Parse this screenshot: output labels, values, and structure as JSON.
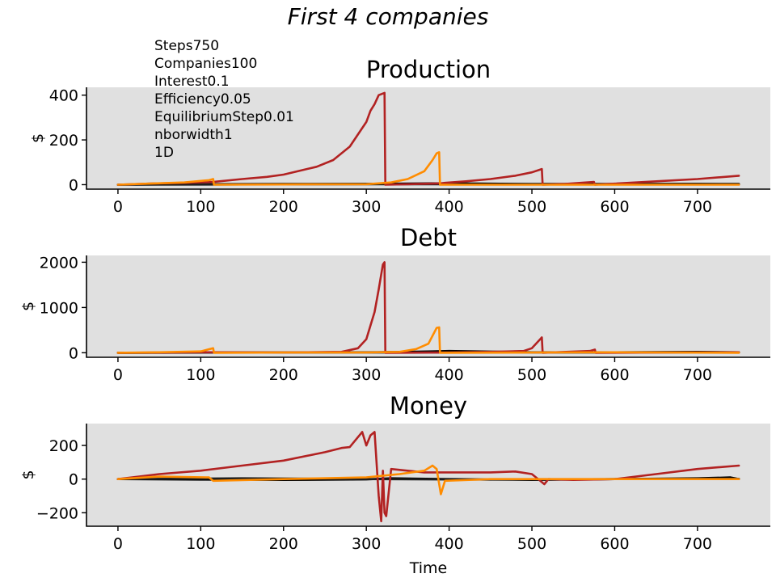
{
  "figure": {
    "suptitle": "First 4 companies",
    "params": [
      "Steps750",
      "Companies100",
      "Interest0.1",
      "Efficiency0.05",
      "EquilibriumStep0.01",
      "nborwidth1",
      "1D"
    ]
  },
  "chart_data": [
    {
      "type": "line",
      "title": "Production",
      "xlabel": "",
      "ylabel": "$",
      "xlim": [
        -38,
        788
      ],
      "ylim": [
        -20,
        435
      ],
      "xticks": [
        0,
        100,
        200,
        300,
        400,
        500,
        600,
        700
      ],
      "yticks": [
        0,
        200,
        400
      ],
      "series": [
        {
          "color": "#000000",
          "points": [
            [
              0,
              0
            ],
            [
              100,
              2
            ],
            [
              200,
              3
            ],
            [
              300,
              4
            ],
            [
              380,
              6
            ],
            [
              400,
              6
            ],
            [
              500,
              3
            ],
            [
              600,
              3
            ],
            [
              700,
              4
            ],
            [
              750,
              3
            ]
          ]
        },
        {
          "color": "#1f1f1f",
          "points": [
            [
              0,
              0
            ],
            [
              150,
              1
            ],
            [
              300,
              2
            ],
            [
              450,
              2
            ],
            [
              600,
              2
            ],
            [
              750,
              1
            ]
          ]
        },
        {
          "color": "#b22222",
          "points": [
            [
              0,
              0
            ],
            [
              40,
              5
            ],
            [
              80,
              8
            ],
            [
              115,
              12
            ],
            [
              150,
              25
            ],
            [
              180,
              35
            ],
            [
              200,
              45
            ],
            [
              240,
              80
            ],
            [
              260,
              110
            ],
            [
              280,
              170
            ],
            [
              300,
              280
            ],
            [
              305,
              330
            ],
            [
              310,
              360
            ],
            [
              315,
              400
            ],
            [
              322,
              410
            ],
            [
              323,
              0
            ],
            [
              350,
              2
            ],
            [
              390,
              6
            ],
            [
              395,
              8
            ],
            [
              420,
              15
            ],
            [
              450,
              25
            ],
            [
              480,
              40
            ],
            [
              500,
              55
            ],
            [
              512,
              70
            ],
            [
              513,
              0
            ],
            [
              540,
              3
            ],
            [
              575,
              12
            ],
            [
              576,
              0
            ],
            [
              650,
              15
            ],
            [
              700,
              25
            ],
            [
              750,
              40
            ]
          ]
        },
        {
          "color": "#ff8c00",
          "points": [
            [
              0,
              0
            ],
            [
              40,
              5
            ],
            [
              80,
              10
            ],
            [
              110,
              20
            ],
            [
              115,
              25
            ],
            [
              116,
              0
            ],
            [
              200,
              1
            ],
            [
              300,
              2
            ],
            [
              330,
              10
            ],
            [
              350,
              25
            ],
            [
              370,
              60
            ],
            [
              380,
              110
            ],
            [
              385,
              140
            ],
            [
              388,
              145
            ],
            [
              389,
              0
            ],
            [
              500,
              0
            ],
            [
              600,
              0
            ],
            [
              750,
              0
            ]
          ]
        }
      ]
    },
    {
      "type": "line",
      "title": "Debt",
      "xlabel": "",
      "ylabel": "$",
      "xlim": [
        -38,
        788
      ],
      "ylim": [
        -100,
        2150
      ],
      "xticks": [
        0,
        100,
        200,
        300,
        400,
        500,
        600,
        700
      ],
      "yticks": [
        0,
        1000,
        2000
      ],
      "series": [
        {
          "color": "#000000",
          "points": [
            [
              0,
              0
            ],
            [
              100,
              5
            ],
            [
              200,
              5
            ],
            [
              300,
              10
            ],
            [
              350,
              20
            ],
            [
              380,
              30
            ],
            [
              400,
              40
            ],
            [
              500,
              10
            ],
            [
              600,
              10
            ],
            [
              700,
              20
            ],
            [
              750,
              10
            ]
          ]
        },
        {
          "color": "#1f1f1f",
          "points": [
            [
              0,
              0
            ],
            [
              200,
              5
            ],
            [
              400,
              5
            ],
            [
              600,
              5
            ],
            [
              750,
              5
            ]
          ]
        },
        {
          "color": "#b22222",
          "points": [
            [
              0,
              0
            ],
            [
              100,
              10
            ],
            [
              200,
              5
            ],
            [
              270,
              20
            ],
            [
              290,
              100
            ],
            [
              300,
              300
            ],
            [
              305,
              600
            ],
            [
              310,
              900
            ],
            [
              315,
              1400
            ],
            [
              320,
              1950
            ],
            [
              322,
              2000
            ],
            [
              323,
              0
            ],
            [
              400,
              5
            ],
            [
              450,
              20
            ],
            [
              490,
              40
            ],
            [
              500,
              100
            ],
            [
              510,
              300
            ],
            [
              512,
              340
            ],
            [
              513,
              0
            ],
            [
              570,
              40
            ],
            [
              576,
              70
            ],
            [
              577,
              0
            ],
            [
              750,
              10
            ]
          ]
        },
        {
          "color": "#ff8c00",
          "points": [
            [
              0,
              0
            ],
            [
              50,
              10
            ],
            [
              100,
              30
            ],
            [
              115,
              100
            ],
            [
              116,
              0
            ],
            [
              200,
              5
            ],
            [
              300,
              5
            ],
            [
              340,
              20
            ],
            [
              360,
              80
            ],
            [
              375,
              200
            ],
            [
              385,
              550
            ],
            [
              388,
              560
            ],
            [
              389,
              0
            ],
            [
              500,
              5
            ],
            [
              600,
              10
            ],
            [
              750,
              0
            ]
          ]
        }
      ]
    },
    {
      "type": "line",
      "title": "Money",
      "xlabel": "Time",
      "ylabel": "$",
      "xlim": [
        -38,
        788
      ],
      "ylim": [
        -280,
        330
      ],
      "xticks": [
        0,
        100,
        200,
        300,
        400,
        500,
        600,
        700
      ],
      "yticks": [
        -200,
        0,
        200
      ],
      "series": [
        {
          "color": "#000000",
          "points": [
            [
              0,
              0
            ],
            [
              100,
              -3
            ],
            [
              200,
              -5
            ],
            [
              300,
              -2
            ],
            [
              330,
              5
            ],
            [
              400,
              0
            ],
            [
              500,
              -5
            ],
            [
              600,
              0
            ],
            [
              700,
              5
            ],
            [
              740,
              10
            ],
            [
              750,
              0
            ]
          ]
        },
        {
          "color": "#1f1f1f",
          "points": [
            [
              0,
              0
            ],
            [
              150,
              5
            ],
            [
              300,
              0
            ],
            [
              450,
              -3
            ],
            [
              600,
              0
            ],
            [
              750,
              2
            ]
          ]
        },
        {
          "color": "#b22222",
          "points": [
            [
              0,
              0
            ],
            [
              50,
              30
            ],
            [
              100,
              50
            ],
            [
              150,
              80
            ],
            [
              200,
              110
            ],
            [
              250,
              160
            ],
            [
              270,
              185
            ],
            [
              280,
              190
            ],
            [
              290,
              250
            ],
            [
              295,
              280
            ],
            [
              300,
              200
            ],
            [
              305,
              260
            ],
            [
              310,
              280
            ],
            [
              315,
              -100
            ],
            [
              318,
              -250
            ],
            [
              320,
              50
            ],
            [
              322,
              -200
            ],
            [
              324,
              -220
            ],
            [
              330,
              60
            ],
            [
              370,
              40
            ],
            [
              400,
              40
            ],
            [
              450,
              40
            ],
            [
              480,
              45
            ],
            [
              500,
              30
            ],
            [
              510,
              -10
            ],
            [
              515,
              -30
            ],
            [
              520,
              0
            ],
            [
              550,
              -5
            ],
            [
              600,
              0
            ],
            [
              650,
              30
            ],
            [
              700,
              60
            ],
            [
              750,
              80
            ]
          ]
        },
        {
          "color": "#ff8c00",
          "points": [
            [
              0,
              0
            ],
            [
              50,
              15
            ],
            [
              110,
              10
            ],
            [
              115,
              -10
            ],
            [
              200,
              0
            ],
            [
              300,
              10
            ],
            [
              340,
              30
            ],
            [
              370,
              50
            ],
            [
              380,
              80
            ],
            [
              385,
              60
            ],
            [
              390,
              -90
            ],
            [
              395,
              -10
            ],
            [
              450,
              0
            ],
            [
              550,
              0
            ],
            [
              650,
              0
            ],
            [
              750,
              0
            ]
          ]
        }
      ]
    }
  ]
}
